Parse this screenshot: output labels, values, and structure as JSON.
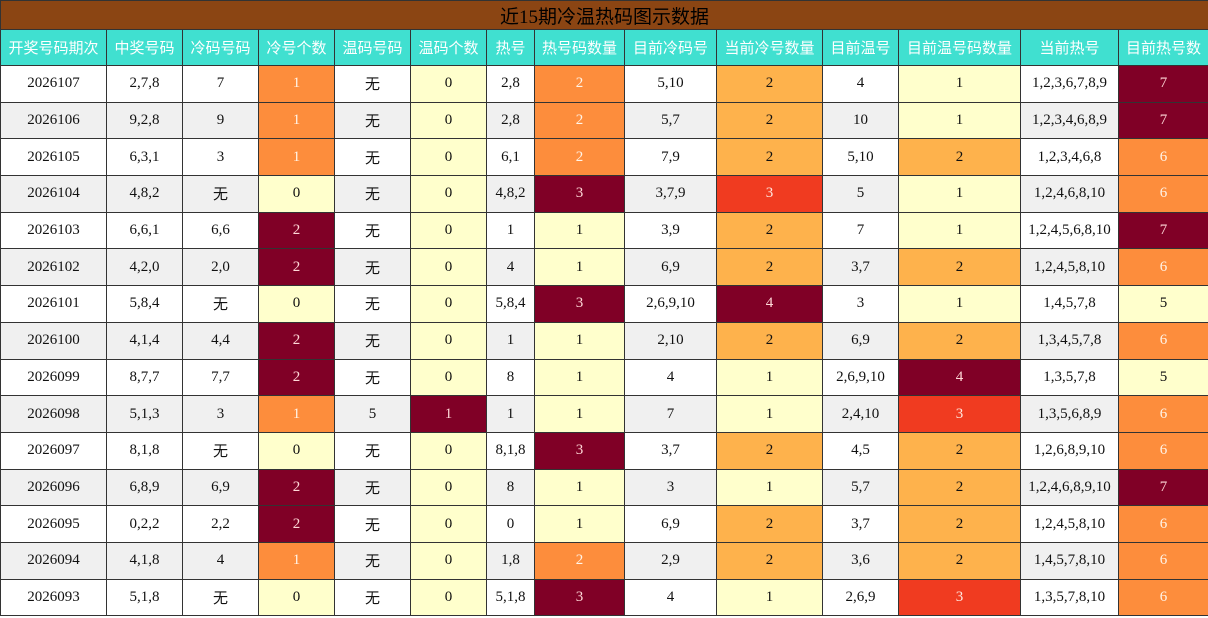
{
  "title": "近15期冷温热码图示数据",
  "table": {
    "header": [
      "开奖号码期次",
      "中奖号码",
      "冷码号码",
      "冷号个数",
      "温码号码",
      "温码个数",
      "热号",
      "热号码数量",
      "目前冷码号",
      "当前冷号数量",
      "目前温号",
      "目前温号码数量",
      "当前热号",
      "目前热号数"
    ],
    "rows": [
      [
        "2026107",
        "2,7,8",
        "7",
        "1",
        "无",
        "0",
        "2,8",
        "2",
        "5,10",
        "2",
        "4",
        "1",
        "1,2,3,6,7,8,9",
        "7"
      ],
      [
        "2026106",
        "9,2,8",
        "9",
        "1",
        "无",
        "0",
        "2,8",
        "2",
        "5,7",
        "2",
        "10",
        "1",
        "1,2,3,4,6,8,9",
        "7"
      ],
      [
        "2026105",
        "6,3,1",
        "3",
        "1",
        "无",
        "0",
        "6,1",
        "2",
        "7,9",
        "2",
        "5,10",
        "2",
        "1,2,3,4,6,8",
        "6"
      ],
      [
        "2026104",
        "4,8,2",
        "无",
        "0",
        "无",
        "0",
        "4,8,2",
        "3",
        "3,7,9",
        "3",
        "5",
        "1",
        "1,2,4,6,8,10",
        "6"
      ],
      [
        "2026103",
        "6,6,1",
        "6,6",
        "2",
        "无",
        "0",
        "1",
        "1",
        "3,9",
        "2",
        "7",
        "1",
        "1,2,4,5,6,8,10",
        "7"
      ],
      [
        "2026102",
        "4,2,0",
        "2,0",
        "2",
        "无",
        "0",
        "4",
        "1",
        "6,9",
        "2",
        "3,7",
        "2",
        "1,2,4,5,8,10",
        "6"
      ],
      [
        "2026101",
        "5,8,4",
        "无",
        "0",
        "无",
        "0",
        "5,8,4",
        "3",
        "2,6,9,10",
        "4",
        "3",
        "1",
        "1,4,5,7,8",
        "5"
      ],
      [
        "2026100",
        "4,1,4",
        "4,4",
        "2",
        "无",
        "0",
        "1",
        "1",
        "2,10",
        "2",
        "6,9",
        "2",
        "1,3,4,5,7,8",
        "6"
      ],
      [
        "2026099",
        "8,7,7",
        "7,7",
        "2",
        "无",
        "0",
        "8",
        "1",
        "4",
        "1",
        "2,6,9,10",
        "4",
        "1,3,5,7,8",
        "5"
      ],
      [
        "2026098",
        "5,1,3",
        "3",
        "1",
        "5",
        "1",
        "1",
        "1",
        "7",
        "1",
        "2,4,10",
        "3",
        "1,3,5,6,8,9",
        "6"
      ],
      [
        "2026097",
        "8,1,8",
        "无",
        "0",
        "无",
        "0",
        "8,1,8",
        "3",
        "3,7",
        "2",
        "4,5",
        "2",
        "1,2,6,8,9,10",
        "6"
      ],
      [
        "2026096",
        "6,8,9",
        "6,9",
        "2",
        "无",
        "0",
        "8",
        "1",
        "3",
        "1",
        "5,7",
        "2",
        "1,2,4,6,8,9,10",
        "7"
      ],
      [
        "2026095",
        "0,2,2",
        "2,2",
        "2",
        "无",
        "0",
        "0",
        "1",
        "6,9",
        "2",
        "3,7",
        "2",
        "1,2,4,5,8,10",
        "6"
      ],
      [
        "2026094",
        "4,1,8",
        "4",
        "1",
        "无",
        "0",
        "1,8",
        "2",
        "2,9",
        "2",
        "3,6",
        "2",
        "1,4,5,7,8,10",
        "6"
      ],
      [
        "2026093",
        "5,1,8",
        "无",
        "0",
        "无",
        "0",
        "5,1,8",
        "3",
        "4",
        "1",
        "2,6,9",
        "3",
        "1,3,5,7,8,10",
        "6"
      ]
    ],
    "cell_colors": [
      [
        null,
        null,
        null,
        "#fd8d3c",
        null,
        "#ffffcc",
        null,
        "#fd8d3c",
        null,
        "#feb24c",
        null,
        "#ffffcc",
        null,
        "#800026"
      ],
      [
        null,
        null,
        null,
        "#fd8d3c",
        null,
        "#ffffcc",
        null,
        "#fd8d3c",
        null,
        "#feb24c",
        null,
        "#ffffcc",
        null,
        "#800026"
      ],
      [
        null,
        null,
        null,
        "#fd8d3c",
        null,
        "#ffffcc",
        null,
        "#fd8d3c",
        null,
        "#feb24c",
        null,
        "#feb24c",
        null,
        "#fd8d3c"
      ],
      [
        null,
        null,
        null,
        "#ffffcc",
        null,
        "#ffffcc",
        null,
        "#800026",
        null,
        "#f03b20",
        null,
        "#ffffcc",
        null,
        "#fd8d3c"
      ],
      [
        null,
        null,
        null,
        "#800026",
        null,
        "#ffffcc",
        null,
        "#ffffcc",
        null,
        "#feb24c",
        null,
        "#ffffcc",
        null,
        "#800026"
      ],
      [
        null,
        null,
        null,
        "#800026",
        null,
        "#ffffcc",
        null,
        "#ffffcc",
        null,
        "#feb24c",
        null,
        "#feb24c",
        null,
        "#fd8d3c"
      ],
      [
        null,
        null,
        null,
        "#ffffcc",
        null,
        "#ffffcc",
        null,
        "#800026",
        null,
        "#800026",
        null,
        "#ffffcc",
        null,
        "#ffffcc"
      ],
      [
        null,
        null,
        null,
        "#800026",
        null,
        "#ffffcc",
        null,
        "#ffffcc",
        null,
        "#feb24c",
        null,
        "#feb24c",
        null,
        "#fd8d3c"
      ],
      [
        null,
        null,
        null,
        "#800026",
        null,
        "#ffffcc",
        null,
        "#ffffcc",
        null,
        "#ffffcc",
        null,
        "#800026",
        null,
        "#ffffcc"
      ],
      [
        null,
        null,
        null,
        "#fd8d3c",
        null,
        "#800026",
        null,
        "#ffffcc",
        null,
        "#ffffcc",
        null,
        "#f03b20",
        null,
        "#fd8d3c"
      ],
      [
        null,
        null,
        null,
        "#ffffcc",
        null,
        "#ffffcc",
        null,
        "#800026",
        null,
        "#feb24c",
        null,
        "#feb24c",
        null,
        "#fd8d3c"
      ],
      [
        null,
        null,
        null,
        "#800026",
        null,
        "#ffffcc",
        null,
        "#ffffcc",
        null,
        "#ffffcc",
        null,
        "#feb24c",
        null,
        "#800026"
      ],
      [
        null,
        null,
        null,
        "#800026",
        null,
        "#ffffcc",
        null,
        "#ffffcc",
        null,
        "#feb24c",
        null,
        "#feb24c",
        null,
        "#fd8d3c"
      ],
      [
        null,
        null,
        null,
        "#fd8d3c",
        null,
        "#ffffcc",
        null,
        "#fd8d3c",
        null,
        "#feb24c",
        null,
        "#feb24c",
        null,
        "#fd8d3c"
      ],
      [
        null,
        null,
        null,
        "#ffffcc",
        null,
        "#ffffcc",
        null,
        "#800026",
        null,
        "#ffffcc",
        null,
        "#f03b20",
        null,
        "#fd8d3c"
      ]
    ]
  }
}
